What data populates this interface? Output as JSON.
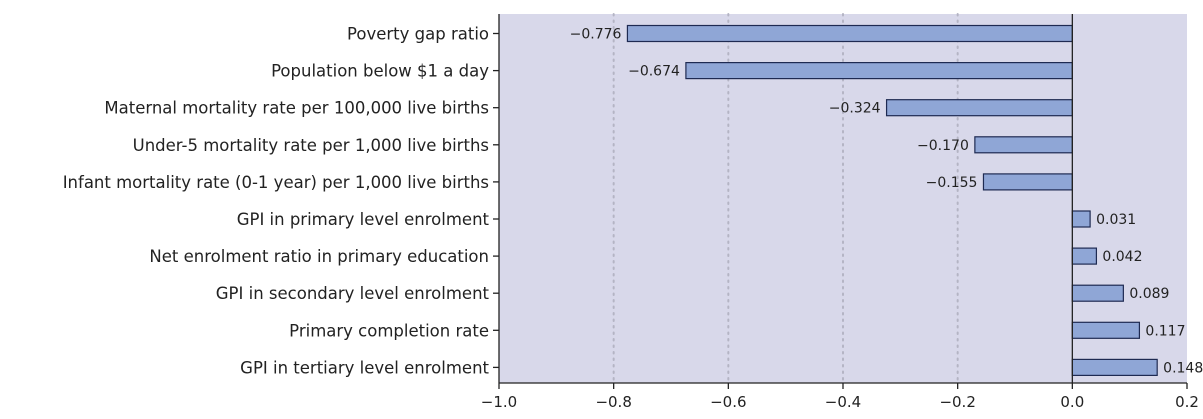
{
  "chart_data": {
    "type": "bar",
    "orientation": "horizontal",
    "title": "",
    "xlabel": "",
    "ylabel": "",
    "categories": [
      "Poverty gap ratio",
      "Population below $1 a day",
      "Maternal mortality rate per 100,000 live births",
      "Under-5 mortality rate per 1,000 live births",
      "Infant mortality rate (0-1 year) per 1,000 live births",
      "GPI in primary level enrolment",
      "Net enrolment ratio in primary education",
      "GPI in secondary level enrolment",
      "Primary completion rate",
      "GPI in tertiary level enrolment"
    ],
    "values": [
      -0.776,
      -0.674,
      -0.324,
      -0.17,
      -0.155,
      0.031,
      0.042,
      0.089,
      0.117,
      0.148
    ],
    "value_labels": [
      "−0.776",
      "−0.674",
      "−0.324",
      "−0.170",
      "−0.155",
      "0.031",
      "0.042",
      "0.089",
      "0.117",
      "0.148"
    ],
    "xlim": [
      -1.0,
      0.2
    ],
    "xticks": [
      -1.0,
      -0.8,
      -0.6,
      -0.4,
      -0.2,
      0.0,
      0.2
    ],
    "xtick_labels": [
      "−1.0",
      "−0.8",
      "−0.6",
      "−0.4",
      "−0.2",
      "0.0",
      "0.2"
    ],
    "grid": "vertical dotted",
    "legend": "none",
    "colors": {
      "plot_background": "#d8d8ea",
      "bar_fill": "#8fa6d6",
      "bar_stroke": "#1e2a52",
      "grid": "#b4b4c4",
      "axis": "#222222"
    }
  }
}
